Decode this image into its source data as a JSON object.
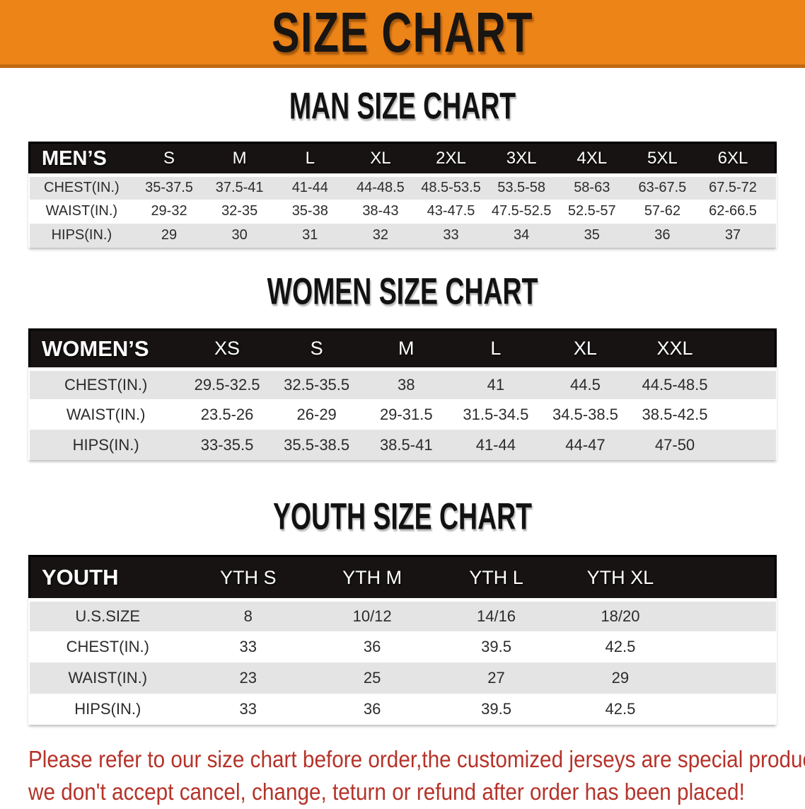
{
  "banner": {
    "title": "SIZE CHART"
  },
  "chart_data": [
    {
      "type": "table",
      "title": "MAN SIZE CHART",
      "header_label": "MEN’S",
      "columns": [
        "S",
        "M",
        "L",
        "XL",
        "2XL",
        "3XL",
        "4XL",
        "5XL",
        "6XL"
      ],
      "rows": [
        {
          "label": "CHEST(IN.)",
          "values": [
            "35-37.5",
            "37.5-41",
            "41-44",
            "44-48.5",
            "48.5-53.5",
            "53.5-58",
            "58-63",
            "63-67.5",
            "67.5-72"
          ]
        },
        {
          "label": "WAIST(IN.)",
          "values": [
            "29-32",
            "32-35",
            "35-38",
            "38-43",
            "43-47.5",
            "47.5-52.5",
            "52.5-57",
            "57-62",
            "62-66.5"
          ]
        },
        {
          "label": "HIPS(IN.)",
          "values": [
            "29",
            "30",
            "31",
            "32",
            "33",
            "34",
            "35",
            "36",
            "37"
          ]
        }
      ]
    },
    {
      "type": "table",
      "title": "WOMEN SIZE CHART",
      "header_label": "WOMEN’S",
      "columns": [
        "XS",
        "S",
        "M",
        "L",
        "XL",
        "XXL"
      ],
      "rows": [
        {
          "label": "CHEST(IN.)",
          "values": [
            "29.5-32.5",
            "32.5-35.5",
            "38",
            "41",
            "44.5",
            "44.5-48.5"
          ]
        },
        {
          "label": "WAIST(IN.)",
          "values": [
            "23.5-26",
            "26-29",
            "29-31.5",
            "31.5-34.5",
            "34.5-38.5",
            "38.5-42.5"
          ]
        },
        {
          "label": "HIPS(IN.)",
          "values": [
            "33-35.5",
            "35.5-38.5",
            "38.5-41",
            "41-44",
            "44-47",
            "47-50"
          ]
        }
      ]
    },
    {
      "type": "table",
      "title": "YOUTH SIZE CHART",
      "header_label": "YOUTH",
      "columns": [
        "YTH S",
        "YTH M",
        "YTH L",
        "YTH XL"
      ],
      "rows": [
        {
          "label": "U.S.SIZE",
          "values": [
            "8",
            "10/12",
            "14/16",
            "18/20"
          ]
        },
        {
          "label": "CHEST(IN.)",
          "values": [
            "33",
            "36",
            "39.5",
            "42.5"
          ]
        },
        {
          "label": "WAIST(IN.)",
          "values": [
            "23",
            "25",
            "27",
            "29"
          ]
        },
        {
          "label": "HIPS(IN.)",
          "values": [
            "33",
            "36",
            "39.5",
            "42.5"
          ]
        }
      ]
    }
  ],
  "footer": {
    "line1": "Please refer to our size chart before order,the customized jerseys are special products,",
    "line2": "we don't accept cancel, change, teturn or refund after order has been placed!"
  },
  "colors": {
    "banner_orange": "#ED8418",
    "banner_edge": "#C06A10",
    "header_black": "#171313",
    "row_gray": "#E4E4E4",
    "row_white": "#FFFFFF",
    "footer_red": "#B5332A"
  }
}
